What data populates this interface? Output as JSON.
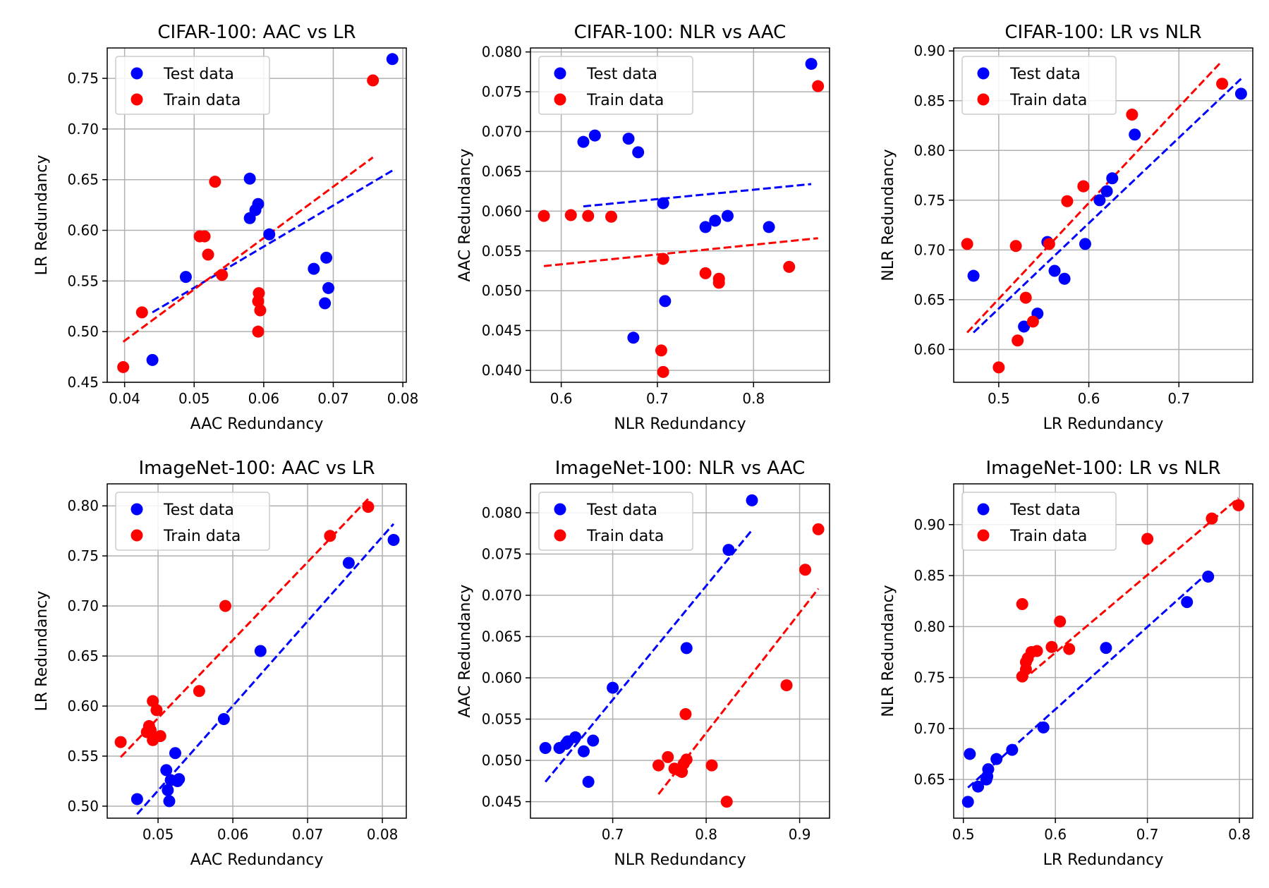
{
  "chart_data": [
    {
      "type": "scatter",
      "title": "CIFAR-100: AAC vs LR",
      "xlabel": "AAC Redundancy",
      "ylabel": "LR Redundancy",
      "xlim": [
        0.0375,
        0.0805
      ],
      "ylim": [
        0.45,
        0.78
      ],
      "xticks": [
        0.04,
        0.05,
        0.06,
        0.07,
        0.08
      ],
      "xtick_labels": [
        "0.04",
        "0.05",
        "0.06",
        "0.07",
        "0.08"
      ],
      "yticks": [
        0.45,
        0.5,
        0.55,
        0.6,
        0.65,
        0.7,
        0.75
      ],
      "ytick_labels": [
        "0.45",
        "0.50",
        "0.55",
        "0.60",
        "0.65",
        "0.70",
        "0.75"
      ],
      "legend": [
        "Test data",
        "Train data"
      ],
      "series": [
        {
          "name": "Test data",
          "color": "#0000ff",
          "points": [
            [
              0.044,
              0.472
            ],
            [
              0.0488,
              0.554
            ],
            [
              0.058,
              0.651
            ],
            [
              0.058,
              0.612
            ],
            [
              0.0588,
              0.62
            ],
            [
              0.0592,
              0.626
            ],
            [
              0.0608,
              0.596
            ],
            [
              0.0672,
              0.562
            ],
            [
              0.0688,
              0.528
            ],
            [
              0.069,
              0.573
            ],
            [
              0.0693,
              0.543
            ],
            [
              0.0785,
              0.769
            ]
          ],
          "fit": [
            [
              0.044,
              0.519
            ],
            [
              0.0785,
              0.659
            ]
          ]
        },
        {
          "name": "Train data",
          "color": "#ff0000",
          "points": [
            [
              0.0398,
              0.465
            ],
            [
              0.0425,
              0.519
            ],
            [
              0.0508,
              0.594
            ],
            [
              0.0515,
              0.594
            ],
            [
              0.052,
              0.576
            ],
            [
              0.053,
              0.648
            ],
            [
              0.054,
              0.556
            ],
            [
              0.0592,
              0.5
            ],
            [
              0.0592,
              0.53
            ],
            [
              0.0593,
              0.538
            ],
            [
              0.0595,
              0.521
            ],
            [
              0.0757,
              0.748
            ]
          ],
          "fit": [
            [
              0.0398,
              0.49
            ],
            [
              0.0757,
              0.672
            ]
          ]
        }
      ]
    },
    {
      "type": "scatter",
      "title": "CIFAR-100: NLR vs AAC",
      "xlabel": "NLR Redundancy",
      "ylabel": "AAC Redundancy",
      "xlim": [
        0.568,
        0.879
      ],
      "ylim": [
        0.0385,
        0.0805
      ],
      "xticks": [
        0.6,
        0.7,
        0.8
      ],
      "xtick_labels": [
        "0.6",
        "0.7",
        "0.8"
      ],
      "yticks": [
        0.04,
        0.045,
        0.05,
        0.055,
        0.06,
        0.065,
        0.07,
        0.075,
        0.08
      ],
      "ytick_labels": [
        "0.040",
        "0.045",
        "0.050",
        "0.055",
        "0.060",
        "0.065",
        "0.070",
        "0.075",
        "0.080"
      ],
      "legend": [
        "Test data",
        "Train data"
      ],
      "series": [
        {
          "name": "Test data",
          "color": "#0000ff",
          "points": [
            [
              0.623,
              0.0687
            ],
            [
              0.635,
              0.0695
            ],
            [
              0.67,
              0.0691
            ],
            [
              0.68,
              0.0674
            ],
            [
              0.675,
              0.0441
            ],
            [
              0.706,
              0.061
            ],
            [
              0.708,
              0.0487
            ],
            [
              0.75,
              0.058
            ],
            [
              0.76,
              0.0588
            ],
            [
              0.773,
              0.0594
            ],
            [
              0.816,
              0.058
            ],
            [
              0.86,
              0.0785
            ]
          ],
          "fit": [
            [
              0.623,
              0.0606
            ],
            [
              0.86,
              0.0634
            ]
          ]
        },
        {
          "name": "Train data",
          "color": "#ff0000",
          "points": [
            [
              0.582,
              0.0594
            ],
            [
              0.61,
              0.0595
            ],
            [
              0.628,
              0.0594
            ],
            [
              0.652,
              0.0593
            ],
            [
              0.704,
              0.0425
            ],
            [
              0.706,
              0.054
            ],
            [
              0.706,
              0.0398
            ],
            [
              0.75,
              0.0522
            ],
            [
              0.764,
              0.0515
            ],
            [
              0.764,
              0.051
            ],
            [
              0.837,
              0.053
            ],
            [
              0.867,
              0.0757
            ]
          ],
          "fit": [
            [
              0.582,
              0.0531
            ],
            [
              0.867,
              0.0566
            ]
          ]
        }
      ]
    },
    {
      "type": "scatter",
      "title": "CIFAR-100: LR vs NLR",
      "xlabel": "LR Redundancy",
      "ylabel": "NLR Redundancy",
      "xlim": [
        0.45,
        0.782
      ],
      "ylim": [
        0.567,
        0.903
      ],
      "xticks": [
        0.5,
        0.6,
        0.7
      ],
      "xtick_labels": [
        "0.5",
        "0.6",
        "0.7"
      ],
      "yticks": [
        0.6,
        0.65,
        0.7,
        0.75,
        0.8,
        0.85,
        0.9
      ],
      "ytick_labels": [
        "0.60",
        "0.65",
        "0.70",
        "0.75",
        "0.80",
        "0.85",
        "0.90"
      ],
      "legend": [
        "Test data",
        "Train data"
      ],
      "series": [
        {
          "name": "Test data",
          "color": "#0000ff",
          "points": [
            [
              0.472,
              0.674
            ],
            [
              0.528,
              0.623
            ],
            [
              0.543,
              0.636
            ],
            [
              0.554,
              0.708
            ],
            [
              0.562,
              0.679
            ],
            [
              0.573,
              0.671
            ],
            [
              0.596,
              0.706
            ],
            [
              0.612,
              0.75
            ],
            [
              0.62,
              0.759
            ],
            [
              0.626,
              0.772
            ],
            [
              0.651,
              0.816
            ],
            [
              0.769,
              0.857
            ]
          ],
          "fit": [
            [
              0.472,
              0.617
            ],
            [
              0.769,
              0.872
            ]
          ]
        },
        {
          "name": "Train data",
          "color": "#ff0000",
          "points": [
            [
              0.465,
              0.706
            ],
            [
              0.5,
              0.582
            ],
            [
              0.519,
              0.704
            ],
            [
              0.521,
              0.609
            ],
            [
              0.53,
              0.652
            ],
            [
              0.538,
              0.628
            ],
            [
              0.556,
              0.706
            ],
            [
              0.576,
              0.749
            ],
            [
              0.594,
              0.764
            ],
            [
              0.594,
              0.764
            ],
            [
              0.648,
              0.836
            ],
            [
              0.748,
              0.867
            ]
          ],
          "fit": [
            [
              0.465,
              0.617
            ],
            [
              0.748,
              0.89
            ]
          ]
        }
      ]
    },
    {
      "type": "scatter",
      "title": "ImageNet-100: AAC vs LR",
      "xlabel": "AAC Redundancy",
      "ylabel": "LR Redundancy",
      "xlim": [
        0.0432,
        0.0832
      ],
      "ylim": [
        0.488,
        0.822
      ],
      "xticks": [
        0.05,
        0.06,
        0.07,
        0.08
      ],
      "xtick_labels": [
        "0.05",
        "0.06",
        "0.07",
        "0.08"
      ],
      "yticks": [
        0.5,
        0.55,
        0.6,
        0.65,
        0.7,
        0.75,
        0.8
      ],
      "ytick_labels": [
        "0.50",
        "0.55",
        "0.60",
        "0.65",
        "0.70",
        "0.75",
        "0.80"
      ],
      "legend": [
        "Test data",
        "Train data"
      ],
      "series": [
        {
          "name": "Test data",
          "color": "#0000ff",
          "points": [
            [
              0.0472,
              0.507
            ],
            [
              0.0511,
              0.536
            ],
            [
              0.0513,
              0.516
            ],
            [
              0.0515,
              0.505
            ],
            [
              0.0517,
              0.526
            ],
            [
              0.0523,
              0.553
            ],
            [
              0.0526,
              0.525
            ],
            [
              0.0528,
              0.527
            ],
            [
              0.0588,
              0.587
            ],
            [
              0.0637,
              0.655
            ],
            [
              0.0755,
              0.743
            ],
            [
              0.0815,
              0.766
            ]
          ],
          "fit": [
            [
              0.0472,
              0.492
            ],
            [
              0.0815,
              0.782
            ]
          ]
        },
        {
          "name": "Train data",
          "color": "#ff0000",
          "points": [
            [
              0.045,
              0.564
            ],
            [
              0.0485,
              0.574
            ],
            [
              0.0488,
              0.58
            ],
            [
              0.049,
              0.576
            ],
            [
              0.0493,
              0.566
            ],
            [
              0.0493,
              0.605
            ],
            [
              0.0498,
              0.596
            ],
            [
              0.0503,
              0.57
            ],
            [
              0.0555,
              0.615
            ],
            [
              0.059,
              0.7
            ],
            [
              0.073,
              0.77
            ],
            [
              0.0781,
              0.799
            ]
          ],
          "fit": [
            [
              0.045,
              0.549
            ],
            [
              0.0781,
              0.807
            ]
          ]
        }
      ]
    },
    {
      "type": "scatter",
      "title": "ImageNet-100: NLR vs AAC",
      "xlabel": "NLR Redundancy",
      "ylabel": "AAC Redundancy",
      "xlim": [
        0.612,
        0.932
      ],
      "ylim": [
        0.043,
        0.0835
      ],
      "xticks": [
        0.7,
        0.8,
        0.9
      ],
      "xtick_labels": [
        "0.7",
        "0.8",
        "0.9"
      ],
      "yticks": [
        0.045,
        0.05,
        0.055,
        0.06,
        0.065,
        0.07,
        0.075,
        0.08
      ],
      "ytick_labels": [
        "0.045",
        "0.050",
        "0.055",
        "0.060",
        "0.065",
        "0.070",
        "0.075",
        "0.080"
      ],
      "legend": [
        "Test data",
        "Train data"
      ],
      "series": [
        {
          "name": "Test data",
          "color": "#0000ff",
          "points": [
            [
              0.628,
              0.0515
            ],
            [
              0.643,
              0.0515
            ],
            [
              0.65,
              0.052
            ],
            [
              0.652,
              0.0523
            ],
            [
              0.66,
              0.0528
            ],
            [
              0.669,
              0.0511
            ],
            [
              0.674,
              0.0474
            ],
            [
              0.679,
              0.0524
            ],
            [
              0.7,
              0.0588
            ],
            [
              0.779,
              0.0636
            ],
            [
              0.824,
              0.0755
            ],
            [
              0.849,
              0.0815
            ]
          ],
          "fit": [
            [
              0.628,
              0.0474
            ],
            [
              0.849,
              0.0779
            ]
          ]
        },
        {
          "name": "Train data",
          "color": "#ff0000",
          "points": [
            [
              0.749,
              0.0494
            ],
            [
              0.759,
              0.0504
            ],
            [
              0.766,
              0.049
            ],
            [
              0.771,
              0.0488
            ],
            [
              0.774,
              0.0486
            ],
            [
              0.776,
              0.0496
            ],
            [
              0.778,
              0.0556
            ],
            [
              0.779,
              0.0501
            ],
            [
              0.806,
              0.0494
            ],
            [
              0.822,
              0.045
            ],
            [
              0.886,
              0.0591
            ],
            [
              0.906,
              0.0731
            ],
            [
              0.92,
              0.078
            ]
          ],
          "fit": [
            [
              0.749,
              0.0459
            ],
            [
              0.92,
              0.0708
            ]
          ]
        }
      ]
    },
    {
      "type": "scatter",
      "title": "ImageNet-100: LR vs NLR",
      "xlabel": "LR Redundancy",
      "ylabel": "NLR Redundancy",
      "xlim": [
        0.4895,
        0.8145
      ],
      "ylim": [
        0.612,
        0.94
      ],
      "xticks": [
        0.5,
        0.6,
        0.7,
        0.8
      ],
      "xtick_labels": [
        "0.5",
        "0.6",
        "0.7",
        "0.8"
      ],
      "yticks": [
        0.65,
        0.7,
        0.75,
        0.8,
        0.85,
        0.9
      ],
      "ytick_labels": [
        "0.65",
        "0.70",
        "0.75",
        "0.80",
        "0.85",
        "0.90"
      ],
      "legend": [
        "Test data",
        "Train data"
      ],
      "series": [
        {
          "name": "Test data",
          "color": "#0000ff",
          "points": [
            [
              0.505,
              0.628
            ],
            [
              0.507,
              0.675
            ],
            [
              0.516,
              0.643
            ],
            [
              0.525,
              0.65
            ],
            [
              0.526,
              0.653
            ],
            [
              0.527,
              0.66
            ],
            [
              0.536,
              0.67
            ],
            [
              0.553,
              0.679
            ],
            [
              0.587,
              0.701
            ],
            [
              0.655,
              0.779
            ],
            [
              0.743,
              0.824
            ],
            [
              0.766,
              0.849
            ]
          ],
          "fit": [
            [
              0.505,
              0.642
            ],
            [
              0.766,
              0.853
            ]
          ]
        },
        {
          "name": "Train data",
          "color": "#ff0000",
          "points": [
            [
              0.564,
              0.822
            ],
            [
              0.564,
              0.751
            ],
            [
              0.568,
              0.758
            ],
            [
              0.568,
              0.765
            ],
            [
              0.57,
              0.769
            ],
            [
              0.574,
              0.775
            ],
            [
              0.58,
              0.776
            ],
            [
              0.596,
              0.78
            ],
            [
              0.605,
              0.805
            ],
            [
              0.615,
              0.778
            ],
            [
              0.7,
              0.886
            ],
            [
              0.77,
              0.906
            ],
            [
              0.799,
              0.919
            ]
          ],
          "fit": [
            [
              0.564,
              0.747
            ],
            [
              0.799,
              0.926
            ]
          ]
        }
      ]
    }
  ]
}
